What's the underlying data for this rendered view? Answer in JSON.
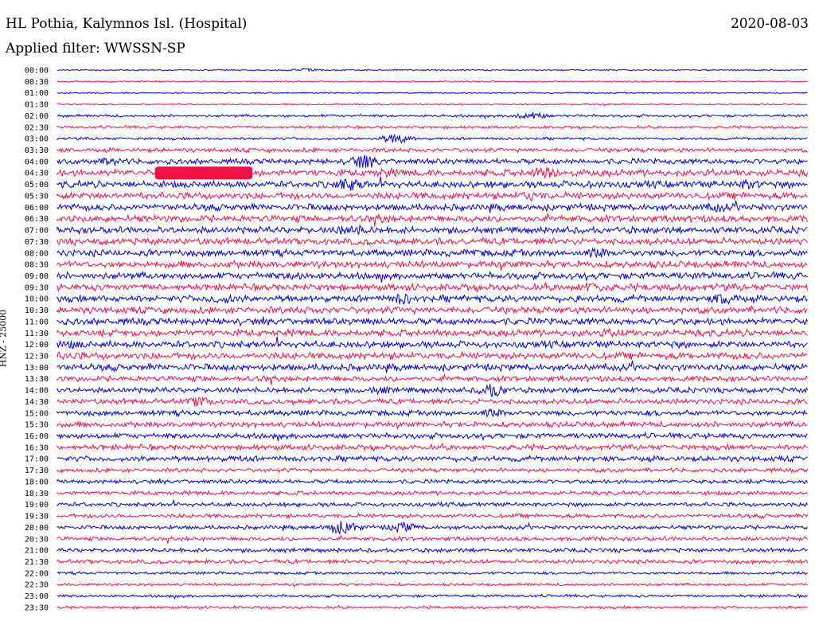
{
  "header": {
    "station": "HL Pothia, Kalymnos Isl. (Hospital)",
    "date": "2020-08-03",
    "filter": "Applied filter: WWSSN-SP"
  },
  "chart_data": {
    "type": "line",
    "ylabel": "HNZ - 25000",
    "row_labels": [
      "00:00",
      "00:30",
      "01:00",
      "01:30",
      "02:00",
      "02:30",
      "03:00",
      "03:30",
      "04:00",
      "04:30",
      "05:00",
      "05:30",
      "06:00",
      "06:30",
      "07:00",
      "07:30",
      "08:00",
      "08:30",
      "09:00",
      "09:30",
      "10:00",
      "10:30",
      "11:00",
      "11:30",
      "12:00",
      "12:30",
      "13:00",
      "13:30",
      "14:00",
      "14:30",
      "15:00",
      "15:30",
      "16:00",
      "16:30",
      "17:00",
      "17:30",
      "18:00",
      "18:30",
      "19:00",
      "19:30",
      "20:00",
      "20:30",
      "21:00",
      "21:30",
      "22:00",
      "22:30",
      "23:00",
      "23:30"
    ],
    "colors": [
      "#0000dd",
      "#ee1144"
    ],
    "amplitude": [
      1,
      1,
      1,
      1,
      2,
      2,
      2,
      3,
      4,
      5,
      5,
      5,
      5,
      5,
      5,
      5,
      5,
      5,
      5,
      5,
      5,
      5,
      5,
      5,
      5,
      5,
      5,
      4,
      4,
      4,
      4,
      4,
      4,
      4,
      4,
      3,
      3,
      3,
      3,
      3,
      3,
      3,
      3,
      3,
      2,
      2,
      2,
      2
    ],
    "events": [
      {
        "row": 0,
        "pos": 0.33,
        "amp": 2
      },
      {
        "row": 4,
        "pos": 0.63,
        "amp": 5
      },
      {
        "row": 6,
        "pos": 0.45,
        "amp": 6
      },
      {
        "row": 8,
        "pos": 0.07,
        "amp": 5
      },
      {
        "row": 8,
        "pos": 0.41,
        "amp": 9
      },
      {
        "row": 9,
        "pos": 0.13,
        "amp": 8,
        "saturated": true,
        "end": 0.26
      },
      {
        "row": 9,
        "pos": 0.44,
        "amp": 6
      },
      {
        "row": 9,
        "pos": 0.65,
        "amp": 8
      },
      {
        "row": 10,
        "pos": 0.39,
        "amp": 8
      },
      {
        "row": 10,
        "pos": 0.72,
        "amp": 5
      },
      {
        "row": 10,
        "pos": 0.92,
        "amp": 6
      },
      {
        "row": 11,
        "pos": 0.63,
        "amp": 6
      },
      {
        "row": 12,
        "pos": 0.88,
        "amp": 6
      },
      {
        "row": 13,
        "pos": 0.43,
        "amp": 6
      },
      {
        "row": 14,
        "pos": 0.39,
        "amp": 8
      },
      {
        "row": 16,
        "pos": 0.72,
        "amp": 6
      },
      {
        "row": 18,
        "pos": 0.32,
        "amp": 5
      },
      {
        "row": 19,
        "pos": 0.71,
        "amp": 7
      },
      {
        "row": 20,
        "pos": 0.22,
        "amp": 6
      },
      {
        "row": 20,
        "pos": 0.46,
        "amp": 7
      },
      {
        "row": 20,
        "pos": 0.89,
        "amp": 7
      },
      {
        "row": 21,
        "pos": 0.33,
        "amp": 5
      },
      {
        "row": 23,
        "pos": 0.74,
        "amp": 6
      },
      {
        "row": 24,
        "pos": 0.02,
        "amp": 5
      },
      {
        "row": 25,
        "pos": 0.01,
        "amp": 5
      },
      {
        "row": 27,
        "pos": 0.28,
        "amp": 4
      },
      {
        "row": 28,
        "pos": 0.43,
        "amp": 5
      },
      {
        "row": 28,
        "pos": 0.58,
        "amp": 8
      },
      {
        "row": 29,
        "pos": 0.19,
        "amp": 6
      },
      {
        "row": 30,
        "pos": 0.58,
        "amp": 5
      },
      {
        "row": 34,
        "pos": 0.24,
        "amp": 4
      },
      {
        "row": 40,
        "pos": 0.38,
        "amp": 9
      },
      {
        "row": 40,
        "pos": 0.46,
        "amp": 6
      }
    ]
  }
}
